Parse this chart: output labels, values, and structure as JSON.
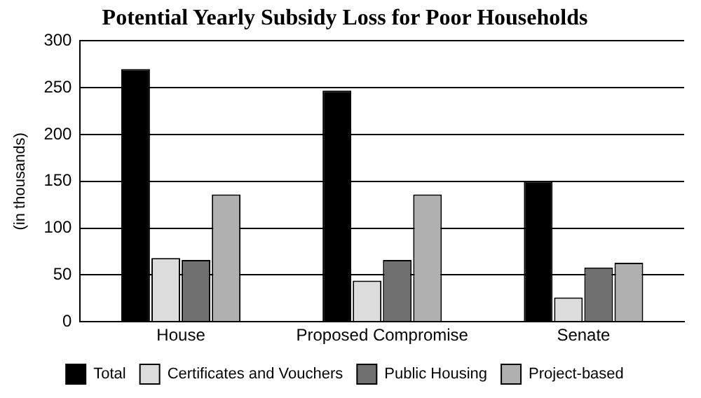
{
  "chart_data": {
    "type": "bar",
    "title": "Potential Yearly Subsidy Loss for Poor Households",
    "ylabel": "(in thousands)",
    "categories": [
      "House",
      "Proposed Compromise",
      "Senate"
    ],
    "series": [
      {
        "name": "Total",
        "color": "#000000",
        "values": [
          270,
          247,
          150
        ]
      },
      {
        "name": "Certificates and Vouchers",
        "color": "#dcdcdc",
        "values": [
          68,
          44,
          26
        ]
      },
      {
        "name": "Public Housing",
        "color": "#707070",
        "values": [
          66,
          66,
          58
        ]
      },
      {
        "name": "Project-based",
        "color": "#b0b0b0",
        "values": [
          136,
          136,
          63
        ]
      }
    ],
    "ylim": [
      0,
      300
    ],
    "yticks": [
      0,
      50,
      100,
      150,
      200,
      250,
      300
    ],
    "grid": "y",
    "legend": "bottom"
  }
}
